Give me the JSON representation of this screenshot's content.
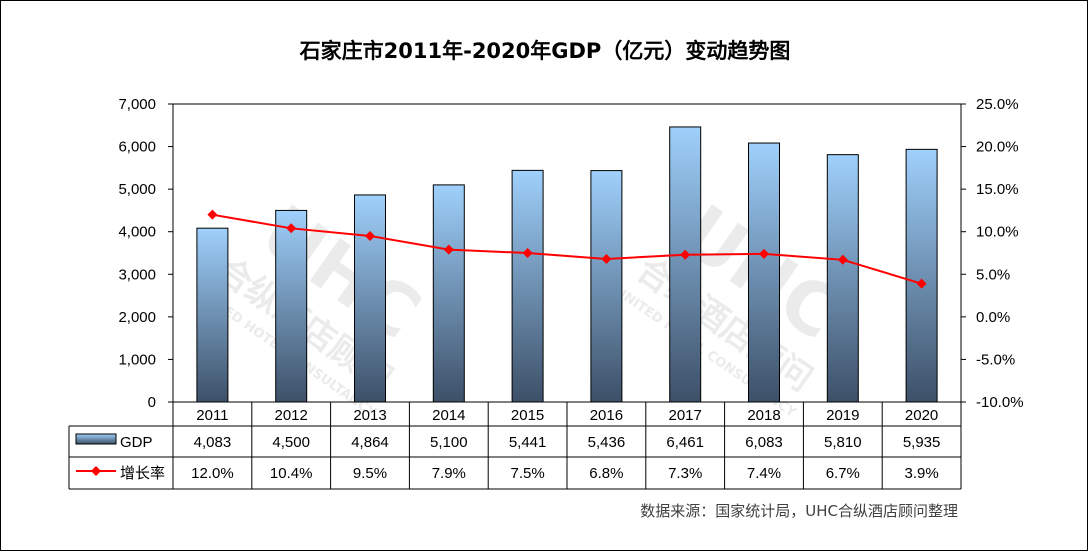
{
  "chart_data": {
    "type": "bar",
    "title": "石家庄市2011年-2020年GDP（亿元）变动趋势图",
    "categories": [
      "2011",
      "2012",
      "2013",
      "2014",
      "2015",
      "2016",
      "2017",
      "2018",
      "2019",
      "2020"
    ],
    "series": [
      {
        "name": "GDP",
        "type": "bar",
        "axis": "left",
        "values": [
          4083,
          4500,
          4864,
          5100,
          5441,
          5436,
          6461,
          6083,
          5810,
          5935
        ],
        "labels": [
          "4,083",
          "4,500",
          "4,864",
          "5,100",
          "5,441",
          "5,436",
          "6,461",
          "6,083",
          "5,810",
          "5,935"
        ]
      },
      {
        "name": "增长率",
        "type": "line",
        "axis": "right",
        "values": [
          12.0,
          10.4,
          9.5,
          7.9,
          7.5,
          6.8,
          7.3,
          7.4,
          6.7,
          3.9
        ],
        "labels": [
          "12.0%",
          "10.4%",
          "9.5%",
          "7.9%",
          "7.5%",
          "6.8%",
          "7.3%",
          "7.4%",
          "6.7%",
          "3.9%"
        ]
      }
    ],
    "y_left": {
      "range": [
        0,
        7000
      ],
      "ticks": [
        0,
        1000,
        2000,
        3000,
        4000,
        5000,
        6000,
        7000
      ],
      "tick_labels": [
        "0",
        "1,000",
        "2,000",
        "3,000",
        "4,000",
        "5,000",
        "6,000",
        "7,000"
      ]
    },
    "y_right": {
      "range": [
        -10,
        25
      ],
      "ticks": [
        -10,
        -5,
        0,
        5,
        10,
        15,
        20,
        25
      ],
      "tick_labels": [
        "-10.0%",
        "-5.0%",
        "0.0%",
        "5.0%",
        "10.0%",
        "15.0%",
        "20.0%",
        "25.0%"
      ]
    },
    "grid": false,
    "legend": "data-table",
    "data_table": true,
    "source": "数据来源：国家统计局，UHC合纵酒店顾问整理",
    "watermark": [
      "UHC",
      "合纵酒店顾问",
      "UNITED HOTEL CONSULTANCY"
    ]
  },
  "colors": {
    "bar_top": "#9fd0fb",
    "bar_bottom": "#3d5068",
    "line": "#ff0000",
    "axis": "#000000"
  }
}
